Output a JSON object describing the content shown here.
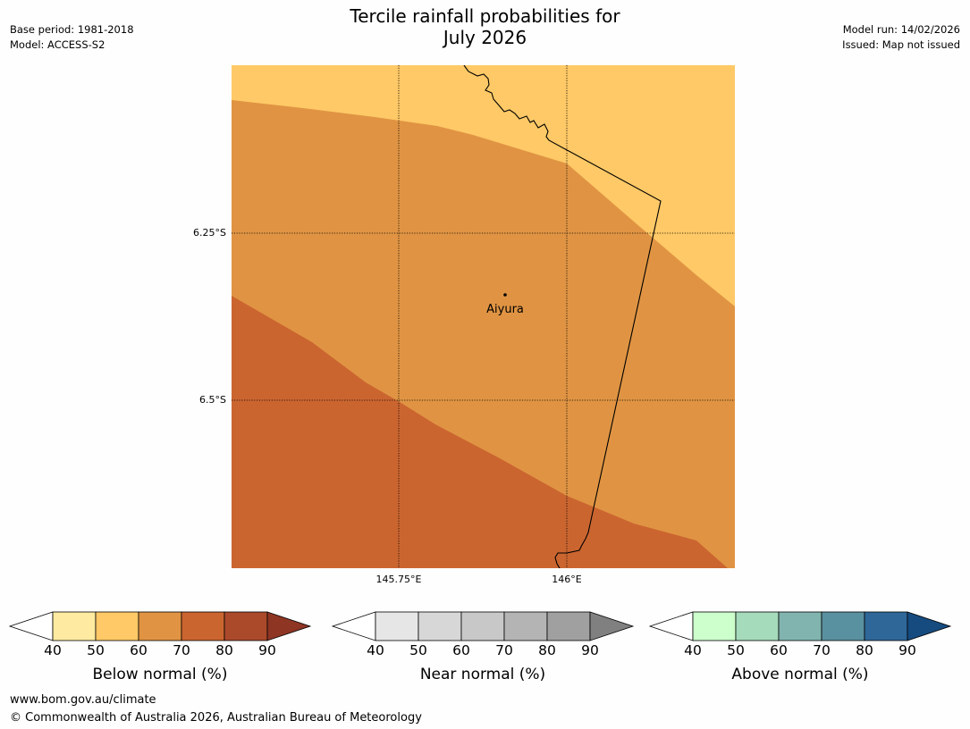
{
  "title": {
    "line1": "Tercile rainfall probabilities for",
    "line2": "July 2026"
  },
  "meta_left": {
    "base_period": "Base period: 1981-2018",
    "model": "Model: ACCESS-S2"
  },
  "meta_right": {
    "model_run": "Model run: 14/02/2026",
    "issued": "Issued: Map not issued"
  },
  "map": {
    "place_label": "Aiyura",
    "lat_ticks": [
      "6.25°S",
      "6.5°S"
    ],
    "lon_ticks": [
      "145.75°E",
      "146°E"
    ],
    "shading_colors": {
      "50-60": "#fec966",
      "60-70": "#e09443",
      "70-80": "#cb6530"
    }
  },
  "colorbars": [
    {
      "label": "Below normal (%)",
      "ticks": [
        "40",
        "50",
        "60",
        "70",
        "80",
        "90"
      ],
      "colors": [
        "#feeaa0",
        "#fec966",
        "#e09443",
        "#cb6530",
        "#ab4a2b"
      ],
      "extend_color": "#8e3524"
    },
    {
      "label": "Near normal (%)",
      "ticks": [
        "40",
        "50",
        "60",
        "70",
        "80",
        "90"
      ],
      "colors": [
        "#e6e6e6",
        "#d7d7d7",
        "#c8c8c8",
        "#b4b4b4",
        "#a0a0a0"
      ],
      "extend_color": "#808080"
    },
    {
      "label": "Above normal (%)",
      "ticks": [
        "40",
        "50",
        "60",
        "70",
        "80",
        "90"
      ],
      "colors": [
        "#ccffcc",
        "#a5dabb",
        "#81b4af",
        "#5a91a0",
        "#2f6798"
      ],
      "extend_color": "#164b7f"
    }
  ],
  "footer": {
    "url": "www.bom.gov.au/climate",
    "copyright": "© Commonwealth of Australia 2026, Australian Bureau of Meteorology"
  }
}
